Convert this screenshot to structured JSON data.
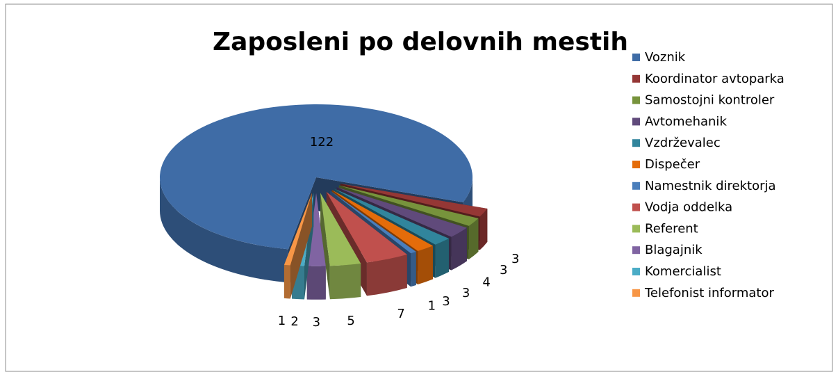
{
  "chart_data": {
    "type": "pie",
    "title": "Zaposleni po delovnih mestih",
    "categories": [
      "Voznik",
      "Koordinator avtoparka",
      "Samostojni kontroler",
      "Avtomehanik",
      "Vzdrževalec",
      "Dispečer",
      "Namestnik direktorja",
      "Vodja oddelka",
      "Referent",
      "Blagajnik",
      "Komercialist",
      "Telefonist informator"
    ],
    "values": [
      122,
      3,
      3,
      4,
      3,
      3,
      1,
      7,
      5,
      3,
      2,
      1
    ],
    "colors": [
      "#3f6ca6",
      "#953735",
      "#77933c",
      "#604a7b",
      "#31859c",
      "#e46c0a",
      "#4a7ebb",
      "#c0504d",
      "#9bbb59",
      "#8064a2",
      "#4bacc6",
      "#f79646"
    ],
    "legend": "right"
  }
}
